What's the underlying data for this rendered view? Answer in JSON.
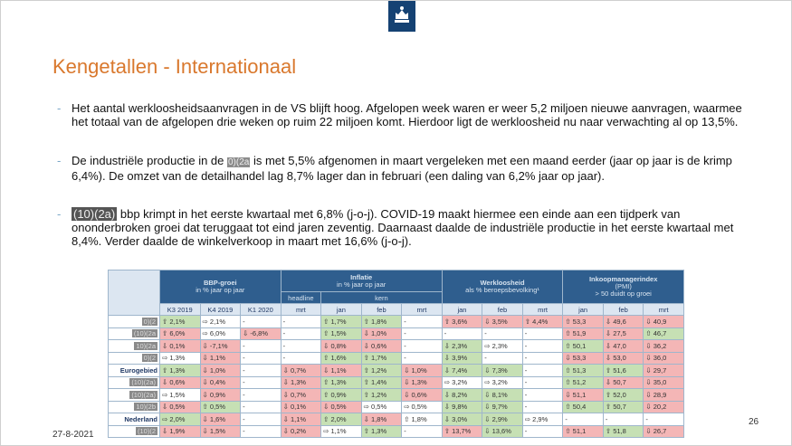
{
  "header": {
    "title": "Kengetallen - Internationaal"
  },
  "bullets": [
    {
      "text": "Het aantal werkloosheidsaanvragen in de VS blijft hoog. Afgelopen week waren er weer 5,2 miljoen nieuwe aanvragen, waarmee het totaal van de afgelopen drie weken op ruim 22 miljoen komt. Hierdoor ligt de werkloosheid nu naar verwachting al op 13,5%."
    },
    {
      "before": "De industriële productie in de ",
      "redacted": "0)(2a",
      "after": " is met 5,5% afgenomen in maart vergeleken met een maand eerder (jaar op jaar is de krimp 6,4%). De omzet van de detailhandel lag 8,7% lager dan in februari (een daling van 6,2% jaar op jaar)."
    },
    {
      "redacted": "(10)(2a)",
      "after": " bbp krimpt in het eerste kwartaal met 6,8% (j-o-j). COVID-19 maakt hiermee een einde aan een tijdperk van ononderbroken groei dat teruggaat tot eind jaren zeventig. Daarnaast daalde de industriële productie in het eerste kwartaal met 8,4%. Verder daalde de winkelverkoop in maart met 16,6% (j-o-j)."
    }
  ],
  "table": {
    "groups": [
      {
        "lines": [
          "BBP-groei",
          "in % jaar op jaar"
        ],
        "span": 3
      },
      {
        "lines": [
          "Inflatie",
          "in % jaar op jaar"
        ],
        "span": 4
      },
      {
        "lines": [
          "Werkloosheid",
          "als % beroepsbevolking¹"
        ],
        "span": 3
      },
      {
        "lines": [
          "Inkoopmanagerindex",
          "(PMI)",
          "> 50 duidt op groei"
        ],
        "span": 3
      }
    ],
    "subgroups": [
      "headline",
      "kern"
    ],
    "columns": [
      "K3 2019",
      "K4 2019",
      "K1 2020",
      "mrt",
      "jan",
      "feb",
      "mrt",
      "jan",
      "feb",
      "mrt",
      "jan",
      "feb",
      "mrt"
    ],
    "rows": [
      {
        "label": "0)(2",
        "style": "redacted",
        "cells": [
          "⇧ 2,1%",
          "⇨ 2,1%",
          "-",
          "-",
          "⇧ 1,7%",
          "⇧ 1,8%",
          "-",
          "⇧ 3,6%",
          "⇩ 3,5%",
          "⇧ 4,4%",
          "⇧ 53,3",
          "⇩ 49,6",
          "⇩ 40,9"
        ],
        "colors": [
          "#c6e0b4",
          "#ffffff",
          "#ffffff",
          "#ffffff",
          "#c6e0b4",
          "#c6e0b4",
          "#ffffff",
          "#f4b6b6",
          "#f4b6b6",
          "#f4b6b6",
          "#f4b6b6",
          "#f4b6b6",
          "#f4b6b6"
        ]
      },
      {
        "label": "(10)(2a",
        "style": "redacted",
        "cells": [
          "⇧ 6,0%",
          "⇨ 6,0%",
          "⇩ -6,8%",
          "-",
          "⇧ 1,5%",
          "⇩ 1,0%",
          "-",
          "-",
          "-",
          "-",
          "⇧ 51,9",
          "⇩ 27,5",
          "⇧ 46,7"
        ],
        "colors": [
          "#f4b6b6",
          "#ffffff",
          "#f4b6b6",
          "#ffffff",
          "#c6e0b4",
          "#f4b6b6",
          "#ffffff",
          "#ffffff",
          "#ffffff",
          "#ffffff",
          "#f4b6b6",
          "#f4b6b6",
          "#c6e0b4"
        ]
      },
      {
        "label": "10)(2a",
        "style": "redacted",
        "cells": [
          "⇩ 0,1%",
          "⇩ -7,1%",
          "-",
          "-",
          "⇩ 0,8%",
          "⇩ 0,6%",
          "-",
          "⇩ 2,3%",
          "⇨ 2,3%",
          "-",
          "⇧ 50,1",
          "⇩ 47,0",
          "⇩ 36,2"
        ],
        "colors": [
          "#f4b6b6",
          "#f4b6b6",
          "#ffffff",
          "#ffffff",
          "#f4b6b6",
          "#f4b6b6",
          "#ffffff",
          "#c6e0b4",
          "#ffffff",
          "#ffffff",
          "#c6e0b4",
          "#f4b6b6",
          "#f4b6b6"
        ]
      },
      {
        "label": "0)(2",
        "style": "redacted",
        "cells": [
          "⇨ 1,3%",
          "⇩ 1,1%",
          "-",
          "-",
          "⇧ 1,6%",
          "⇧ 1,7%",
          "-",
          "⇩ 3,9%",
          "-",
          "-",
          "⇩ 53,3",
          "⇩ 53,0",
          "⇩ 36,0"
        ],
        "colors": [
          "#ffffff",
          "#f4b6b6",
          "#ffffff",
          "#ffffff",
          "#c6e0b4",
          "#c6e0b4",
          "#ffffff",
          "#c6e0b4",
          "#ffffff",
          "#ffffff",
          "#f4b6b6",
          "#f4b6b6",
          "#f4b6b6"
        ]
      },
      {
        "label": "Eurogebied",
        "style": "bold",
        "cells": [
          "⇧ 1,3%",
          "⇩ 1,0%",
          "-",
          "⇩ 0,7%",
          "⇩ 1,1%",
          "⇧ 1,2%",
          "⇩ 1,0%",
          "⇩ 7,4%",
          "⇩ 7,3%",
          "-",
          "⇧ 51,3",
          "⇧ 51,6",
          "⇩ 29,7"
        ],
        "colors": [
          "#c6e0b4",
          "#f4b6b6",
          "#ffffff",
          "#f4b6b6",
          "#f4b6b6",
          "#c6e0b4",
          "#f4b6b6",
          "#c6e0b4",
          "#c6e0b4",
          "#ffffff",
          "#c6e0b4",
          "#c6e0b4",
          "#f4b6b6"
        ]
      },
      {
        "label": "(10)(2a)",
        "style": "redacted",
        "cells": [
          "⇩ 0,6%",
          "⇩ 0,4%",
          "-",
          "⇩ 1,3%",
          "⇧ 1,3%",
          "⇧ 1,4%",
          "⇩ 1,3%",
          "⇨ 3,2%",
          "⇨ 3,2%",
          "-",
          "⇧ 51,2",
          "⇩ 50,7",
          "⇩ 35,0"
        ],
        "colors": [
          "#f4b6b6",
          "#f4b6b6",
          "#ffffff",
          "#f4b6b6",
          "#c6e0b4",
          "#c6e0b4",
          "#f4b6b6",
          "#ffffff",
          "#ffffff",
          "#ffffff",
          "#c6e0b4",
          "#f4b6b6",
          "#f4b6b6"
        ]
      },
      {
        "label": "(10)(2a)",
        "style": "redacted",
        "cells": [
          "⇨ 1,5%",
          "⇩ 0,9%",
          "-",
          "⇩ 0,7%",
          "⇧ 0,9%",
          "⇧ 1,2%",
          "⇩ 0,6%",
          "⇩ 8,2%",
          "⇩ 8,1%",
          "-",
          "⇩ 51,1",
          "⇧ 52,0",
          "⇩ 28,9"
        ],
        "colors": [
          "#ffffff",
          "#f4b6b6",
          "#ffffff",
          "#f4b6b6",
          "#c6e0b4",
          "#c6e0b4",
          "#f4b6b6",
          "#c6e0b4",
          "#c6e0b4",
          "#ffffff",
          "#f4b6b6",
          "#c6e0b4",
          "#f4b6b6"
        ]
      },
      {
        "label": "10)(2b",
        "style": "redacted",
        "cells": [
          "⇩ 0,5%",
          "⇧ 0,5%",
          "-",
          "⇩ 0,1%",
          "⇩ 0,5%",
          "⇨ 0,5%",
          "⇨ 0,5%",
          "⇩ 9,8%",
          "⇩ 9,7%",
          "-",
          "⇧ 50,4",
          "⇧ 50,7",
          "⇩ 20,2"
        ],
        "colors": [
          "#f4b6b6",
          "#c6e0b4",
          "#ffffff",
          "#f4b6b6",
          "#f4b6b6",
          "#ffffff",
          "#ffffff",
          "#c6e0b4",
          "#c6e0b4",
          "#ffffff",
          "#c6e0b4",
          "#c6e0b4",
          "#f4b6b6"
        ]
      },
      {
        "label": "Nederland",
        "style": "bold",
        "cells": [
          "⇨ 2,0%",
          "⇩ 1,6%",
          "-",
          "⇩ 1,1%",
          "⇧ 2,0%",
          "⇩ 1,8%",
          "⇧ 1,8%",
          "⇩ 3,0%",
          "⇩ 2,9%",
          "⇨ 2,9%",
          "-",
          "-",
          "-"
        ],
        "colors": [
          "#c6e0b4",
          "#f4b6b6",
          "#ffffff",
          "#f4b6b6",
          "#c6e0b4",
          "#f4b6b6",
          "#ffffff",
          "#c6e0b4",
          "#c6e0b4",
          "#ffffff",
          "#ffffff",
          "#ffffff",
          "#ffffff"
        ]
      },
      {
        "label": "(10)(2",
        "style": "redacted",
        "cells": [
          "⇩ 1,9%",
          "⇩ 1,5%",
          "-",
          "⇩ 0,2%",
          "⇨ 1,1%",
          "⇧ 1,3%",
          "-",
          "⇧ 13,7%",
          "⇩ 13,6%",
          "-",
          "⇧ 51,1",
          "⇧ 51,8",
          "⇩ 26,7"
        ],
        "colors": [
          "#f4b6b6",
          "#f4b6b6",
          "#ffffff",
          "#f4b6b6",
          "#ffffff",
          "#c6e0b4",
          "#ffffff",
          "#f4b6b6",
          "#c6e0b4",
          "#ffffff",
          "#f4b6b6",
          "#c6e0b4",
          "#f4b6b6"
        ]
      }
    ]
  },
  "footer": {
    "date": "27-8-2021",
    "page": "26"
  }
}
